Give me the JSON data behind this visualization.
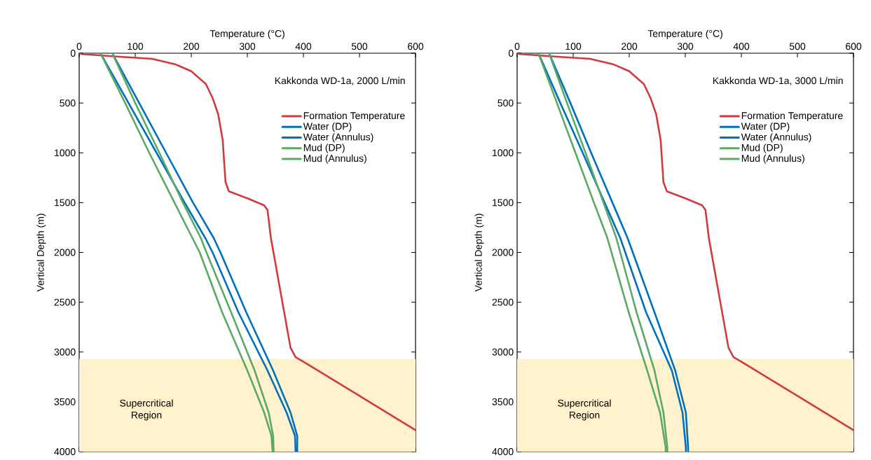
{
  "chart_data": [
    {
      "type": "line",
      "xlabel": "Temperature (°C)",
      "ylabel": "Vertical Depth (m)",
      "legend_title": "Kakkonda WD-1a, 2000 L/min",
      "legend": "top right",
      "xlim": [
        0,
        600
      ],
      "ylim": [
        4000,
        0
      ],
      "xticks": [
        0,
        100,
        200,
        300,
        400,
        500,
        600
      ],
      "yticks": [
        0,
        500,
        1000,
        1500,
        2000,
        2500,
        3000,
        3500,
        4000
      ],
      "bands": [
        {
          "axis": "y",
          "from": 3070,
          "to": 4000,
          "label": "Supercritical Region",
          "color": "#fff2cc"
        }
      ],
      "series": [
        {
          "name": "Formation Temperature",
          "color": "#d13b40",
          "x": [
            0,
            5,
            67,
            130,
            171,
            200,
            226,
            238,
            248,
            256,
            261,
            267,
            300,
            330,
            336,
            342,
            377,
            386,
            400,
            500,
            598,
            600
          ],
          "values": [
            0,
            9,
            33,
            56,
            110,
            181,
            309,
            450,
            613,
            872,
            1293,
            1386,
            1457,
            1527,
            1575,
            1856,
            2957,
            3051,
            3098,
            3440,
            3777,
            3784
          ]
        },
        {
          "name": "Water (DP)",
          "color": "#0070c0",
          "x": [
            38,
            88,
            138,
            188,
            225,
            238,
            284,
            336,
            370,
            385,
            386
          ],
          "values": [
            0,
            500,
            1000,
            1500,
            1856,
            2000,
            2601,
            3186,
            3608,
            3842,
            4000
          ]
        },
        {
          "name": "Water (Annulus)",
          "color": "#0070c0",
          "x": [
            59,
            107,
            155,
            203,
            240,
            252,
            298,
            346,
            377,
            389,
            389
          ],
          "values": [
            0,
            500,
            1000,
            1500,
            1856,
            2000,
            2601,
            3186,
            3608,
            3842,
            4000
          ]
        },
        {
          "name": "Mud (DP)",
          "color": "#5aaa64",
          "x": [
            38,
            82,
            125,
            170,
            202,
            215,
            255,
            300,
            330,
            343,
            345
          ],
          "values": [
            0,
            500,
            1000,
            1500,
            1856,
            2000,
            2601,
            3186,
            3608,
            3842,
            4000
          ]
        },
        {
          "name": "Mud (Annulus)",
          "color": "#5aaa64",
          "x": [
            59,
            100,
            143,
            185,
            217,
            227,
            271,
            313,
            338,
            346,
            347
          ],
          "values": [
            0,
            500,
            1000,
            1500,
            1856,
            2000,
            2601,
            3186,
            3608,
            3842,
            4000
          ]
        }
      ]
    },
    {
      "type": "line",
      "xlabel": "Temperature (°C)",
      "ylabel": "Vertical Depth (m)",
      "legend_title": "Kakkonda WD-1a, 3000 L/min",
      "legend": "top right",
      "xlim": [
        0,
        600
      ],
      "ylim": [
        4000,
        0
      ],
      "xticks": [
        0,
        100,
        200,
        300,
        400,
        500,
        600
      ],
      "yticks": [
        0,
        500,
        1000,
        1500,
        2000,
        2500,
        3000,
        3500,
        4000
      ],
      "bands": [
        {
          "axis": "y",
          "from": 3070,
          "to": 4000,
          "label": "Supercritical Region",
          "color": "#fff2cc"
        }
      ],
      "series": [
        {
          "name": "Formation Temperature",
          "color": "#d13b40",
          "x": [
            0,
            5,
            67,
            130,
            171,
            200,
            226,
            238,
            248,
            256,
            261,
            267,
            300,
            330,
            336,
            342,
            377,
            386,
            400,
            500,
            598,
            600
          ],
          "values": [
            0,
            9,
            33,
            56,
            110,
            181,
            309,
            450,
            613,
            872,
            1293,
            1386,
            1457,
            1527,
            1575,
            1856,
            2957,
            3051,
            3098,
            3440,
            3777,
            3784
          ]
        },
        {
          "name": "Water (DP)",
          "color": "#0070c0",
          "x": [
            38,
            77,
            117,
            156,
            184,
            230,
            276,
            295,
            301,
            301
          ],
          "values": [
            0,
            500,
            1000,
            1500,
            1856,
            2601,
            3186,
            3608,
            3960,
            4000
          ]
        },
        {
          "name": "Water (Annulus)",
          "color": "#0070c0",
          "x": [
            57,
            95,
            132,
            170,
            197,
            245,
            282,
            301,
            305,
            305
          ],
          "values": [
            0,
            500,
            1000,
            1500,
            1856,
            2601,
            3186,
            3608,
            3960,
            4000
          ]
        },
        {
          "name": "Mud (DP)",
          "color": "#5aaa64",
          "x": [
            38,
            71,
            104,
            137,
            161,
            199,
            232,
            255,
            265,
            265
          ],
          "values": [
            0,
            500,
            1000,
            1500,
            1856,
            2601,
            3186,
            3608,
            3960,
            4000
          ]
        },
        {
          "name": "Mud (Annulus)",
          "color": "#5aaa64",
          "x": [
            57,
            89,
            122,
            154,
            177,
            213,
            245,
            261,
            268,
            268
          ],
          "values": [
            0,
            500,
            1000,
            1500,
            1856,
            2601,
            3186,
            3608,
            3960,
            4000
          ]
        }
      ]
    }
  ]
}
